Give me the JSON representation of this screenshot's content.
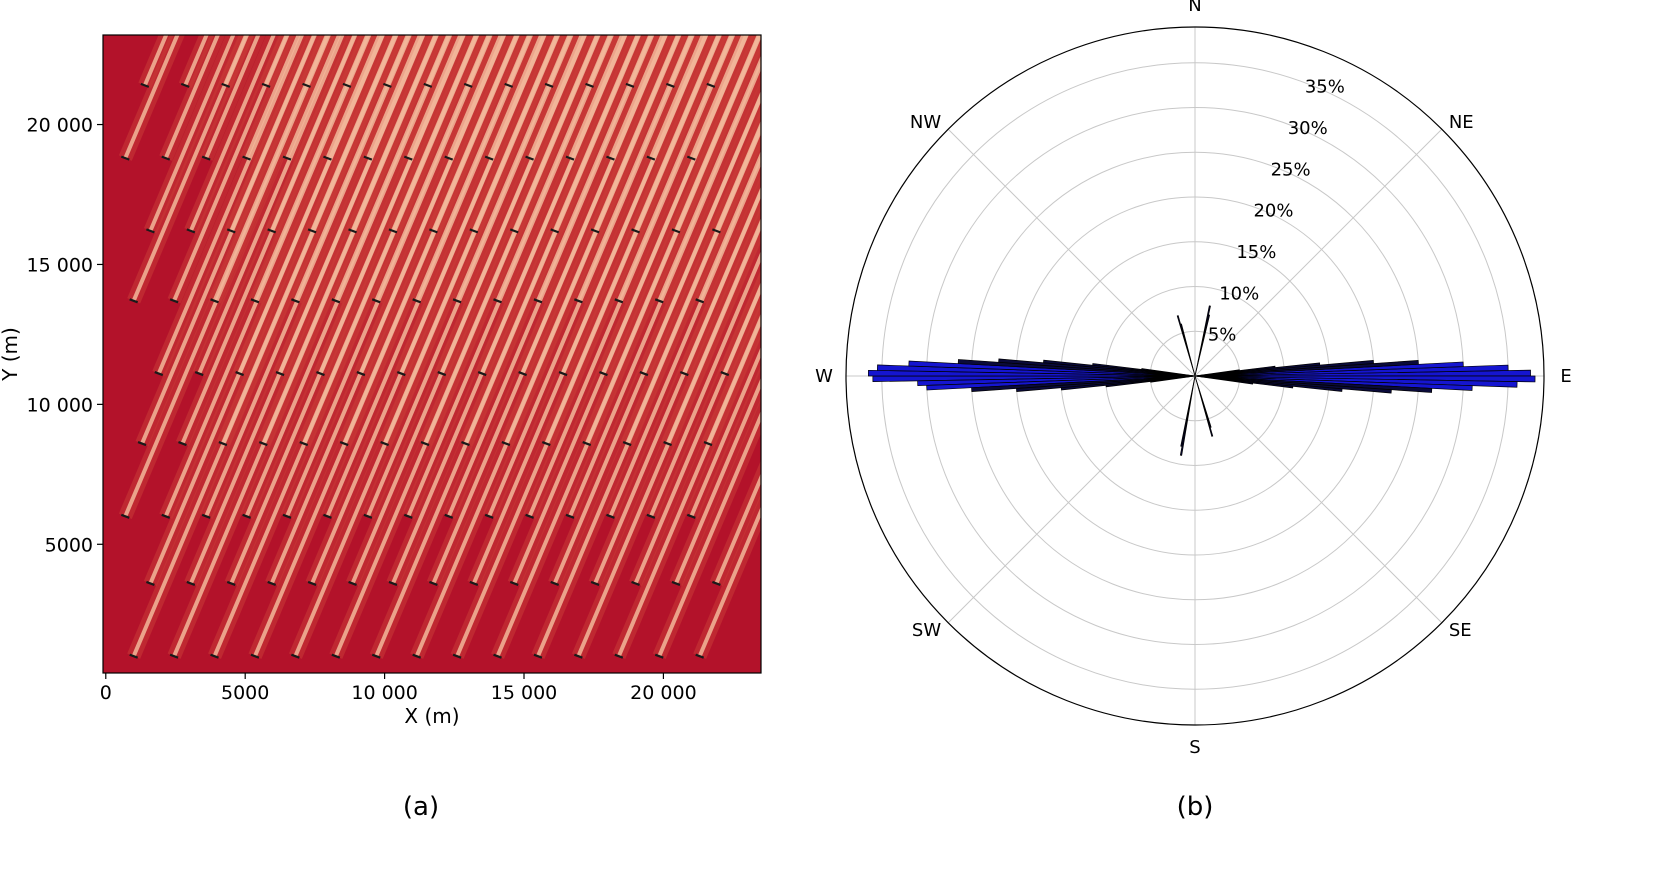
{
  "chart_data": [
    {
      "type": "heatmap",
      "panel_label": "(a)",
      "xlabel": "X (m)",
      "ylabel": "Y (m)",
      "xlim": [
        -100,
        23500
      ],
      "ylim": [
        400,
        23200
      ],
      "x_ticks": [
        0,
        5000,
        10000,
        15000,
        20000
      ],
      "x_tick_labels": [
        "0",
        "5000",
        "10 000",
        "15 000",
        "20 000"
      ],
      "y_ticks": [
        5000,
        10000,
        15000,
        20000
      ],
      "y_tick_labels": [
        "5000",
        "10 000",
        "15 000",
        "20 000"
      ],
      "colors": {
        "background": "#b3122a",
        "wake": "#c83a36",
        "wake_core": "#f2b79a",
        "turbine": "#1a1a1a"
      },
      "wake_direction_deg_from_north": 23,
      "turbine_rows": [
        {
          "y": 1000,
          "x": [
            1000,
            2450,
            3900,
            5350,
            6800,
            8250,
            9700,
            11150,
            12600,
            14050,
            15500,
            16950,
            18400,
            19850,
            21300
          ]
        },
        {
          "y": 3600,
          "x": [
            1600,
            3050,
            4500,
            5950,
            7400,
            8850,
            10300,
            11750,
            13200,
            14650,
            16100,
            17550,
            19000,
            20450,
            21900
          ]
        },
        {
          "y": 6000,
          "x": [
            700,
            2150,
            3600,
            5050,
            6500,
            7950,
            9400,
            10850,
            12300,
            13750,
            15200,
            16650,
            18100,
            19550,
            21000
          ]
        },
        {
          "y": 8600,
          "x": [
            1300,
            2750,
            4200,
            5650,
            7100,
            8550,
            10000,
            11450,
            12900,
            14350,
            15800,
            17250,
            18700,
            20150,
            21600
          ]
        },
        {
          "y": 11100,
          "x": [
            1900,
            3350,
            4800,
            6250,
            7700,
            9150,
            10600,
            12050,
            13500,
            14950,
            16400,
            17850,
            19300,
            20750,
            22200
          ]
        },
        {
          "y": 13700,
          "x": [
            1000,
            2450,
            3900,
            5350,
            6800,
            8250,
            9700,
            11150,
            12600,
            14050,
            15500,
            16950,
            18400,
            19850,
            21300
          ]
        },
        {
          "y": 16200,
          "x": [
            1600,
            3050,
            4500,
            5950,
            7400,
            8850,
            10300,
            11750,
            13200,
            14650,
            16100,
            17550,
            19000,
            20450,
            21900
          ]
        },
        {
          "y": 18800,
          "x": [
            700,
            2150,
            3600,
            5050,
            6500,
            7950,
            9400,
            10850,
            12300,
            13750,
            15200,
            16650,
            18100,
            19550,
            21000
          ]
        },
        {
          "y": 21400,
          "x": [
            1400,
            2850,
            4300,
            5750,
            7200,
            8650,
            10100,
            11550,
            13000,
            14450,
            15900,
            17350,
            18800,
            20250,
            21700
          ]
        }
      ]
    },
    {
      "type": "wind_rose",
      "panel_label": "(b)",
      "direction_labels": [
        "N",
        "NE",
        "E",
        "SE",
        "S",
        "SW",
        "W",
        "NW"
      ],
      "radial_ticks": [
        5,
        10,
        15,
        20,
        25,
        30,
        35
      ],
      "radial_tick_labels": [
        "5%",
        "10%",
        "15%",
        "20%",
        "25%",
        "30%",
        "35%"
      ],
      "rmax": 39,
      "colors": {
        "near_axis": "#1515d0",
        "off_axis": "#0a0a3a",
        "edge": "#000000",
        "grid": "#c8c8c8"
      },
      "sectors": [
        {
          "dir": 89.5,
          "value": 37.5
        },
        {
          "dir": 90.5,
          "value": 38.0
        },
        {
          "dir": 88.5,
          "value": 35.0
        },
        {
          "dir": 91.5,
          "value": 36.0
        },
        {
          "dir": 87.5,
          "value": 30.0
        },
        {
          "dir": 92.5,
          "value": 31.0
        },
        {
          "dir": 86.5,
          "value": 25.0
        },
        {
          "dir": 93.5,
          "value": 26.5
        },
        {
          "dir": 85.5,
          "value": 20.0
        },
        {
          "dir": 94.5,
          "value": 22.0
        },
        {
          "dir": 84.5,
          "value": 14.0
        },
        {
          "dir": 95.5,
          "value": 16.5
        },
        {
          "dir": 83.5,
          "value": 9.0
        },
        {
          "dir": 96.5,
          "value": 11.0
        },
        {
          "dir": 82.5,
          "value": 5.0
        },
        {
          "dir": 97.5,
          "value": 6.5
        },
        {
          "dir": 269.5,
          "value": 36.0
        },
        {
          "dir": 270.5,
          "value": 36.5
        },
        {
          "dir": 268.5,
          "value": 31.0
        },
        {
          "dir": 271.5,
          "value": 35.5
        },
        {
          "dir": 267.5,
          "value": 30.0
        },
        {
          "dir": 272.5,
          "value": 32.0
        },
        {
          "dir": 266.5,
          "value": 25.0
        },
        {
          "dir": 273.5,
          "value": 26.5
        },
        {
          "dir": 265.5,
          "value": 20.0
        },
        {
          "dir": 274.5,
          "value": 22.0
        },
        {
          "dir": 264.5,
          "value": 15.0
        },
        {
          "dir": 275.5,
          "value": 17.0
        },
        {
          "dir": 263.5,
          "value": 10.0
        },
        {
          "dir": 276.5,
          "value": 11.5
        },
        {
          "dir": 262.5,
          "value": 5.0
        },
        {
          "dir": 277.5,
          "value": 6.0
        },
        {
          "dir": 12,
          "value": 8.0
        },
        {
          "dir": 13,
          "value": 7.0
        },
        {
          "dir": 344,
          "value": 7.0
        },
        {
          "dir": 345,
          "value": 6.0
        },
        {
          "dir": 164,
          "value": 7.0
        },
        {
          "dir": 163,
          "value": 6.0
        },
        {
          "dir": 190,
          "value": 9.0
        },
        {
          "dir": 191,
          "value": 8.0
        }
      ]
    }
  ]
}
